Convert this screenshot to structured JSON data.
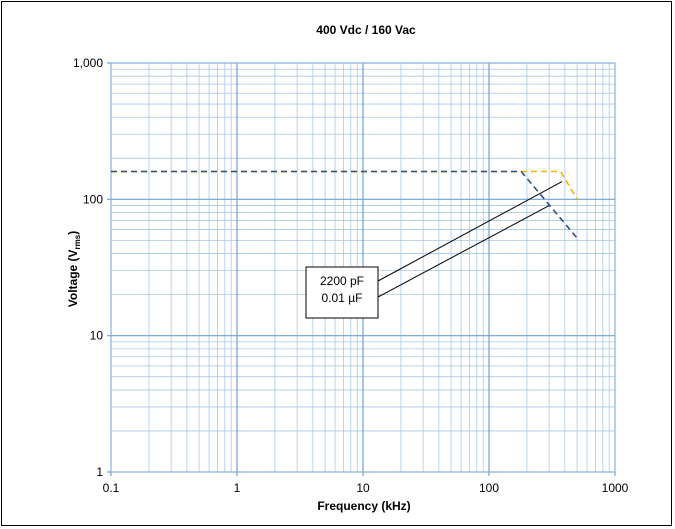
{
  "chart_data": {
    "type": "line",
    "title": "400 Vdc / 160 Vac",
    "xlabel": "Frequency (kHz)",
    "ylabel_main": "Voltage (V",
    "ylabel_sub": "rms",
    "ylabel_end": ")",
    "x_scale": "log",
    "y_scale": "log",
    "xlim": [
      0.1,
      1000
    ],
    "ylim": [
      1,
      1000
    ],
    "x_ticks": [
      "0.1",
      "1",
      "10",
      "100",
      "1000"
    ],
    "y_ticks": [
      "1",
      "10",
      "100",
      "1,000"
    ],
    "grid": true,
    "series": [
      {
        "name": "2200 pF",
        "color": "#f0b400",
        "style": "dashed",
        "x": [
          0.1,
          370,
          500
        ],
        "y": [
          160,
          160,
          100
        ]
      },
      {
        "name": "0.01 µF",
        "color": "#2e4f86",
        "style": "dashed",
        "x": [
          0.1,
          180,
          500
        ],
        "y": [
          160,
          160,
          52
        ]
      }
    ],
    "callout": {
      "labels": [
        "2200 pF",
        "0.01  µF"
      ],
      "targets": [
        [
          380,
          135
        ],
        [
          300,
          90
        ]
      ]
    }
  }
}
